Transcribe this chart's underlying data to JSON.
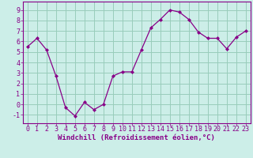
{
  "x": [
    0,
    1,
    2,
    3,
    4,
    5,
    6,
    7,
    8,
    9,
    10,
    11,
    12,
    13,
    14,
    15,
    16,
    17,
    18,
    19,
    20,
    21,
    22,
    23
  ],
  "y": [
    5.5,
    6.3,
    5.2,
    2.7,
    -0.3,
    -1.1,
    0.2,
    -0.5,
    0.0,
    2.7,
    3.1,
    3.1,
    5.2,
    7.3,
    8.1,
    9.0,
    8.8,
    8.1,
    6.9,
    6.3,
    6.3,
    5.3,
    6.4,
    7.0
  ],
  "line_color": "#880088",
  "marker": "D",
  "marker_size": 2.0,
  "bg_color": "#cceee8",
  "grid_color": "#99ccbb",
  "xlabel": "Windchill (Refroidissement éolien,°C)",
  "xlabel_color": "#880088",
  "xlabel_fontsize": 6.5,
  "ylim": [
    -1.8,
    9.8
  ],
  "xlim": [
    -0.5,
    23.5
  ],
  "tick_color": "#880088",
  "ytick_vals": [
    -1,
    0,
    1,
    2,
    3,
    4,
    5,
    6,
    7,
    8,
    9
  ],
  "tick_fontsize": 6.0
}
